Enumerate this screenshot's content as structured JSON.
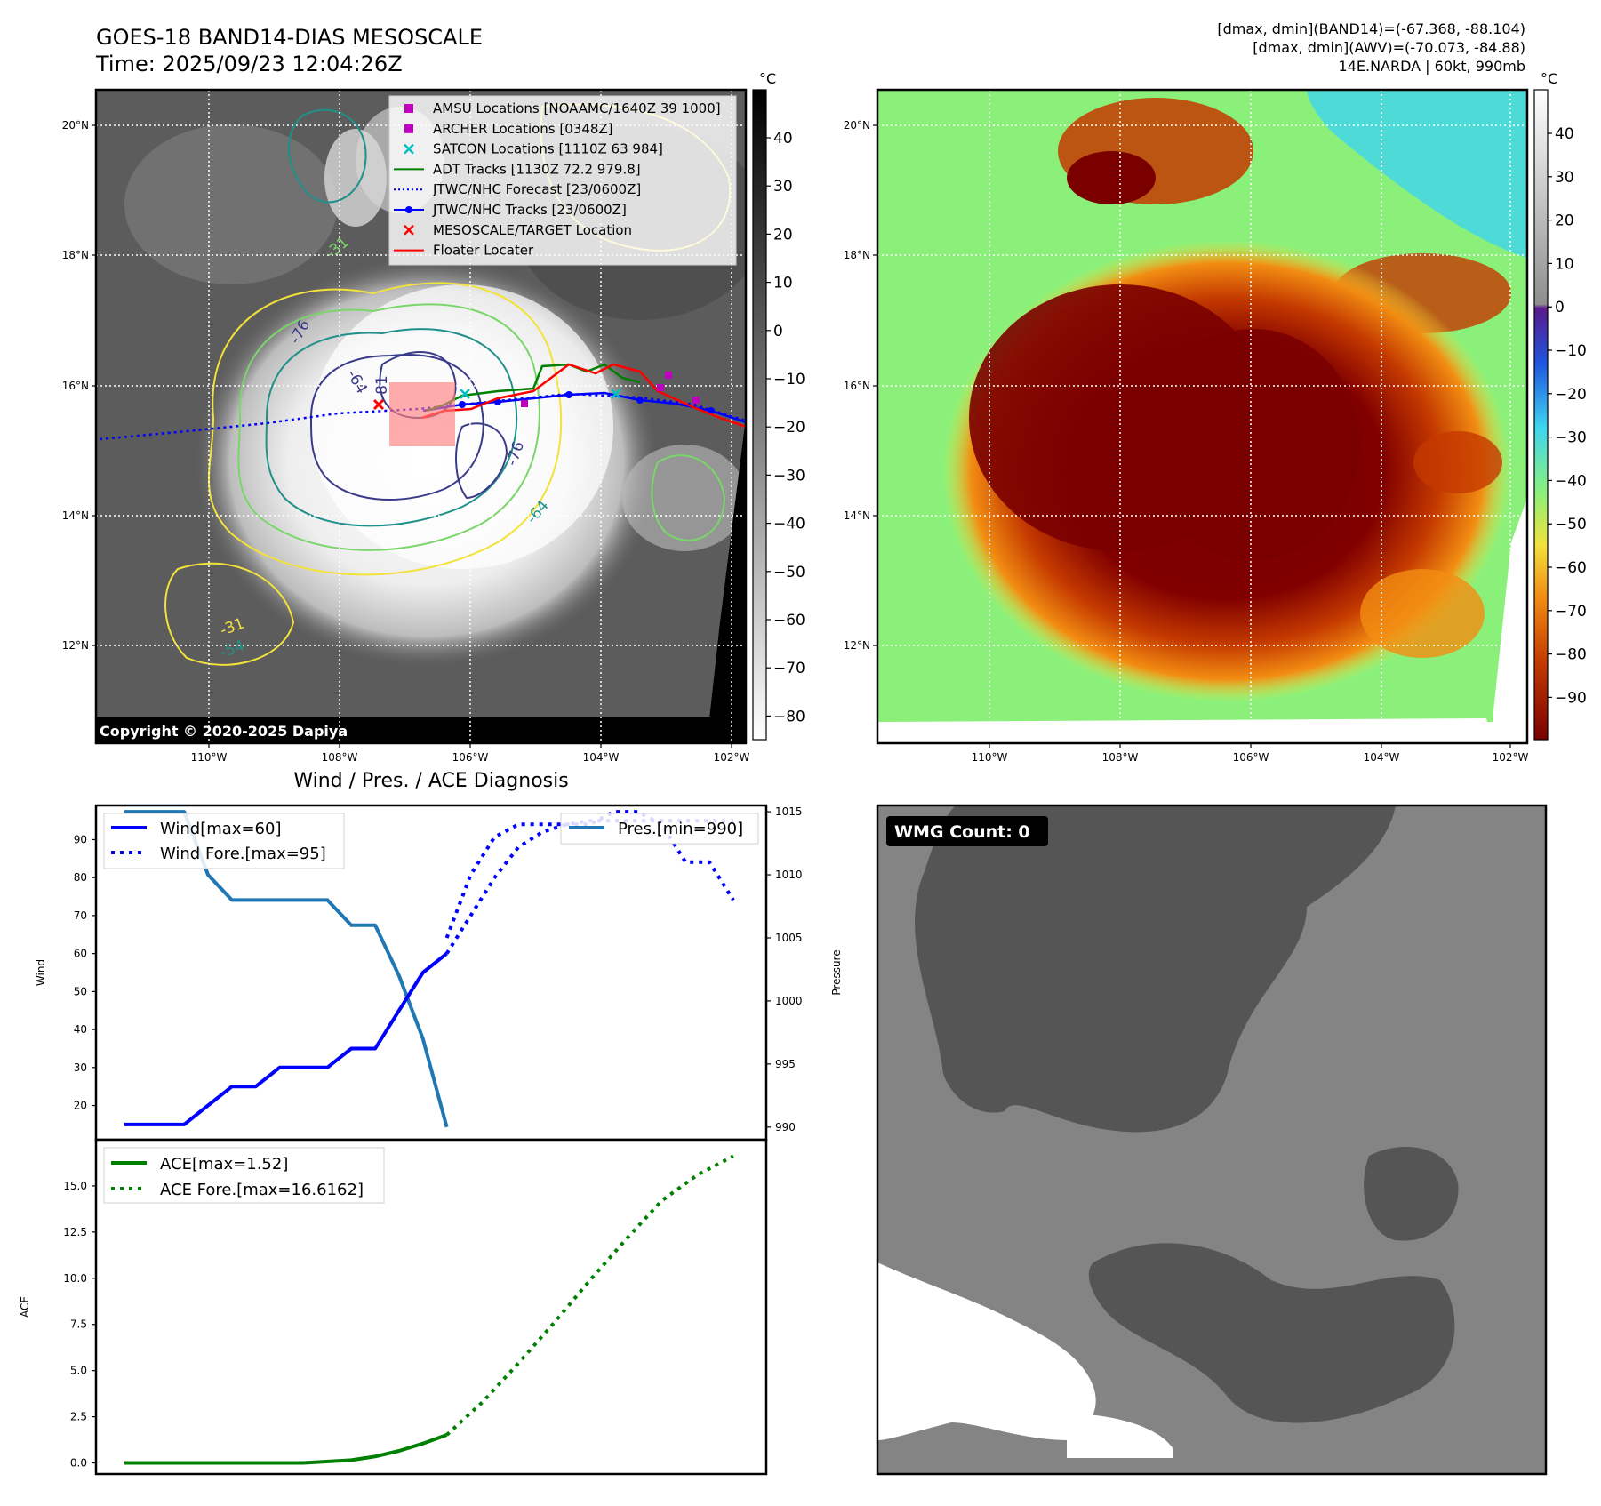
{
  "header": {
    "title_line1": "GOES-18 BAND14-DIAS MESOSCALE",
    "title_line2": "Time: 2025/09/23 12:04:26Z",
    "info_line1": "[dmax, dmin](BAND14)=(-67.368, -88.104)",
    "info_line2": "[dmax, dmin](AWV)=(-70.073, -84.88)",
    "info_line3": "14E.NARDA | 60kt, 990mb"
  },
  "map": {
    "lat_labels": [
      "20°N",
      "18°N",
      "16°N",
      "14°N",
      "12°N"
    ],
    "lon_labels": [
      "110°W",
      "108°W",
      "106°W",
      "104°W",
      "102°W"
    ],
    "copyright": "Copyright © 2020-2025 Dapiya",
    "contour_labels": [
      "-76",
      "-64",
      "-81",
      "-76",
      "-64",
      "-31",
      "-54",
      "-31"
    ],
    "legend": [
      {
        "label": "AMSU Locations [NOAAMC/1640Z 39 1000]",
        "color": "#c000c0",
        "marker": "square"
      },
      {
        "label": "ARCHER Locations [0348Z]",
        "color": "#c000c0",
        "marker": "square"
      },
      {
        "label": "SATCON Locations [1110Z 63 984]",
        "color": "#00bfbf",
        "marker": "x"
      },
      {
        "label": "ADT Tracks [1130Z 72.2 979.8]",
        "color": "#008000",
        "marker": "line"
      },
      {
        "label": "JTWC/NHC Forecast [23/0600Z]",
        "color": "#0000ff",
        "marker": "dotted"
      },
      {
        "label": "JTWC/NHC Tracks [23/0600Z]",
        "color": "#0000ff",
        "marker": "line-dot"
      },
      {
        "label": "MESOSCALE/TARGET Location",
        "color": "#ff0000",
        "marker": "x"
      },
      {
        "label": "Floater Locater",
        "color": "#ff0000",
        "marker": "line"
      }
    ]
  },
  "colorbar_gray": {
    "unit": "°C",
    "ticks": [
      "40",
      "30",
      "20",
      "10",
      "0",
      "−10",
      "−20",
      "−30",
      "−40",
      "−50",
      "−60",
      "−70",
      "−80"
    ]
  },
  "colorbar_color": {
    "unit": "°C",
    "ticks": [
      "40",
      "30",
      "20",
      "10",
      "0",
      "−10",
      "−20",
      "−30",
      "−40",
      "−50",
      "−60",
      "−70",
      "−80",
      "−90"
    ]
  },
  "wmg": {
    "label": "WMG Count: 0"
  },
  "chart_data": [
    {
      "type": "line",
      "title": "Wind / Pres. / ACE Diagnosis",
      "ylabel": "Wind",
      "ylim": [
        11,
        99
      ],
      "yticks": [
        "90",
        "80",
        "70",
        "60",
        "50",
        "40",
        "30",
        "20"
      ],
      "series": [
        {
          "name": "Wind[max=60]",
          "style": "solid",
          "color": "#0000ff",
          "x": [
            0,
            3,
            5,
            7,
            9,
            11,
            13,
            15,
            17,
            19,
            21,
            23,
            25,
            27
          ],
          "y": [
            15,
            15,
            15,
            20,
            25,
            25,
            30,
            30,
            30,
            35,
            35,
            45,
            55,
            60
          ]
        },
        {
          "name": "Wind Fore.[max=95]",
          "style": "dotted",
          "color": "#0000ff",
          "x": [
            27,
            29,
            31,
            33,
            35,
            37,
            39,
            41,
            43,
            45,
            47,
            49,
            51
          ],
          "y": [
            60,
            70,
            80,
            88,
            92,
            94,
            95,
            95,
            95,
            95,
            95,
            95,
            95
          ]
        }
      ]
    },
    {
      "type": "line",
      "ylabel": "Pressure",
      "ylim": [
        989,
        1015.5
      ],
      "yticks": [
        "1015",
        "1010",
        "1005",
        "1000",
        "995",
        "990"
      ],
      "series": [
        {
          "name": "Pres.[min=990]",
          "style": "solid",
          "color": "#1f77b4",
          "x": [
            0,
            3,
            5,
            7,
            9,
            11,
            13,
            15,
            17,
            19,
            21,
            23,
            25,
            27
          ],
          "y": [
            1015,
            1015,
            1015,
            1010,
            1008,
            1008,
            1008,
            1008,
            1008,
            1006,
            1006,
            1002,
            997,
            990
          ]
        },
        {
          "name": "",
          "style": "dotted",
          "color": "#0000ff",
          "x": [
            27,
            29,
            31,
            33,
            35,
            37,
            39,
            41,
            43,
            45,
            47,
            49,
            51
          ],
          "y": [
            1005,
            1010,
            1013,
            1014,
            1014,
            1014,
            1014,
            1015,
            1015,
            1014,
            1011,
            1011,
            1008
          ]
        }
      ]
    },
    {
      "type": "line",
      "ylabel": "ACE",
      "ylim": [
        -0.6,
        17.5
      ],
      "yticks": [
        "15.0",
        "12.5",
        "10.0",
        "7.5",
        "5.0",
        "2.5",
        "0.0"
      ],
      "series": [
        {
          "name": "ACE[max=1.52]",
          "style": "solid",
          "color": "#008000",
          "x": [
            0,
            5,
            10,
            15,
            19,
            21,
            23,
            25,
            27
          ],
          "y": [
            0,
            0,
            0,
            0,
            0.15,
            0.35,
            0.65,
            1.05,
            1.52
          ]
        },
        {
          "name": "ACE Fore.[max=16.6162]",
          "style": "dotted",
          "color": "#008000",
          "x": [
            27,
            30,
            33,
            36,
            39,
            42,
            45,
            48,
            51
          ],
          "y": [
            1.52,
            3.3,
            5.4,
            7.6,
            9.9,
            12.1,
            14.2,
            15.6,
            16.6162
          ]
        }
      ]
    }
  ]
}
